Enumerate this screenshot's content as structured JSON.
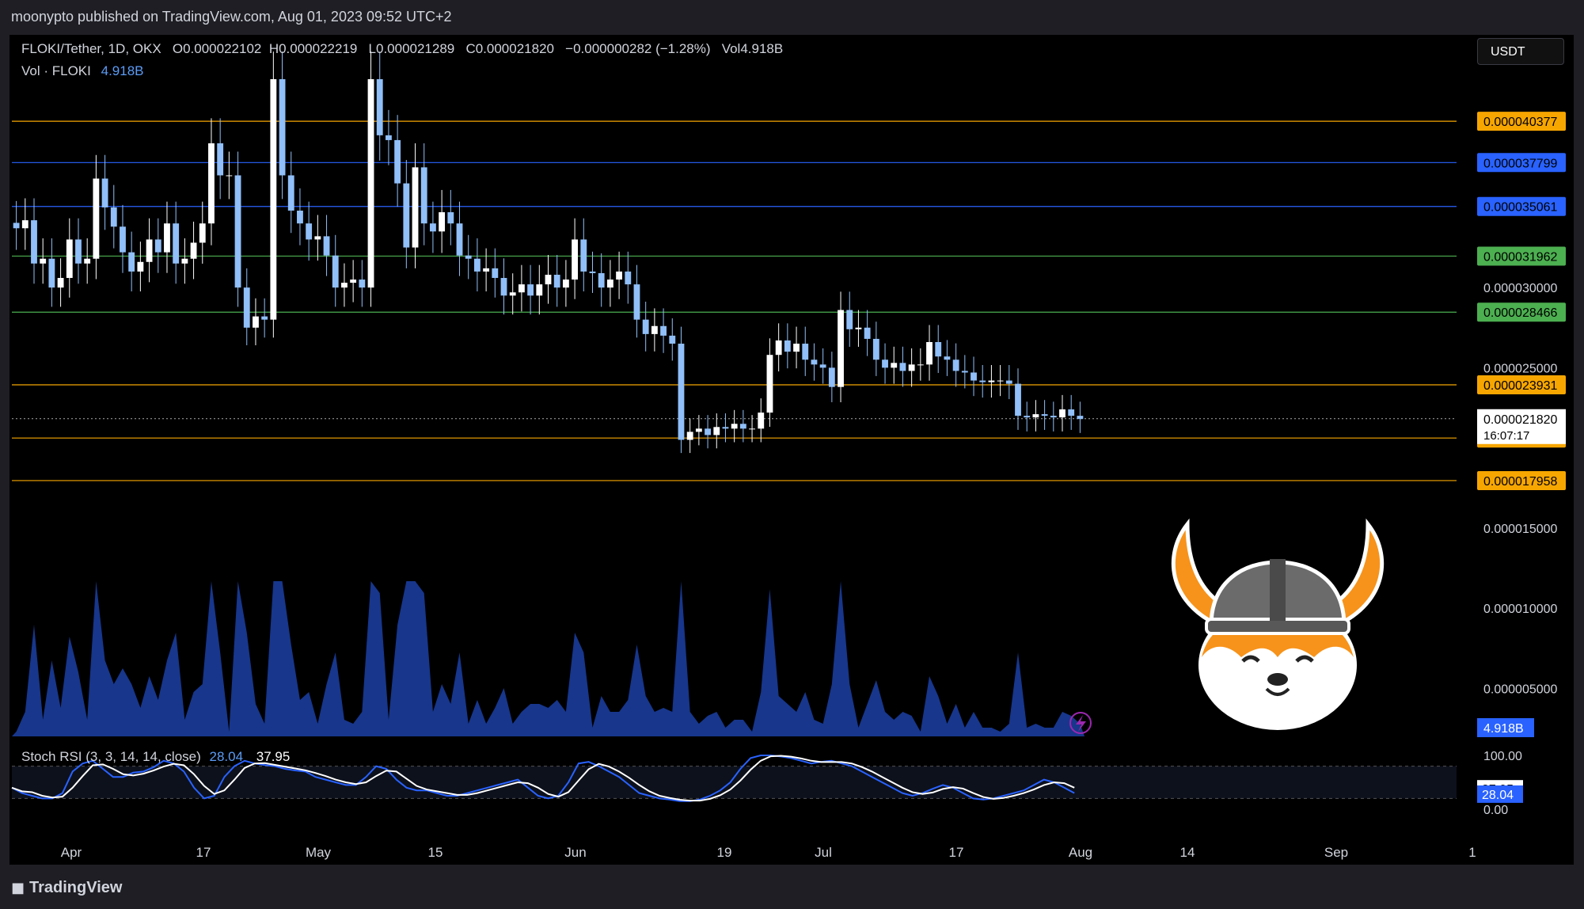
{
  "header": {
    "publish_text": "moonypto published on TradingView.com, Aug 01, 2023 09:52 UTC+2"
  },
  "legend": {
    "symbol": "FLOKI/Tether, 1D, OKX",
    "open": "O0.000022102",
    "high": "H0.000022219",
    "low": "L0.000021289",
    "close": "C0.000021820",
    "change": "−0.000000282 (−1.28%)",
    "volume": "Vol4.918B",
    "vol_label": "Vol · FLOKI",
    "vol_value": "4.918B"
  },
  "currency_button": "USDT",
  "footer": {
    "brand": "TradingView"
  },
  "colors": {
    "bg": "#000000",
    "candle_up": "#ffffff",
    "candle_down": "#90bff9",
    "orange": "#f7a600",
    "blue": "#2962ff",
    "green": "#4caf50",
    "volume": "#2962ff"
  },
  "chart_data": [
    {
      "type": "candlestick",
      "title": "FLOKI/Tether, 1D, OKX",
      "x_ticks": [
        "Apr",
        "17",
        "May",
        "15",
        "Jun",
        "19",
        "Jul",
        "17",
        "Aug",
        "14",
        "Sep",
        "1"
      ],
      "y_ticks": [
        3e-05,
        2.5e-05,
        1.5e-05,
        1e-05,
        5e-06
      ],
      "ylim": [
        2e-06,
        4.3e-05
      ],
      "horizontal_levels": [
        {
          "value": 4.0377e-05,
          "label": "0.000040377",
          "color": "#f7a600"
        },
        {
          "value": 3.7799e-05,
          "label": "0.000037799",
          "color": "#2962ff"
        },
        {
          "value": 3.5061e-05,
          "label": "0.000035061",
          "color": "#2962ff"
        },
        {
          "value": 3.1962e-05,
          "label": "0.000031962",
          "color": "#4caf50"
        },
        {
          "value": 2.8466e-05,
          "label": "0.000028466",
          "color": "#4caf50"
        },
        {
          "value": 2.3931e-05,
          "label": "0.000023931",
          "color": "#f7a600"
        },
        {
          "value": 2.0613e-05,
          "label": "0.000020613",
          "color": "#f7a600"
        },
        {
          "value": 1.7958e-05,
          "label": "0.000017958",
          "color": "#f7a600"
        }
      ],
      "last_price": {
        "value": 2.182e-05,
        "label": "0.000021820",
        "countdown": "16:07:17"
      },
      "close_series_start": "2023-03-27",
      "close": [
        3.37e-05,
        3.42e-05,
        3.15e-05,
        3.18e-05,
        3e-05,
        3.06e-05,
        3.3e-05,
        3.15e-05,
        3.18e-05,
        3.68e-05,
        3.5e-05,
        3.38e-05,
        3.22e-05,
        3.1e-05,
        3.16e-05,
        3.3e-05,
        3.22e-05,
        3.4e-05,
        3.15e-05,
        3.18e-05,
        3.28e-05,
        3.4e-05,
        3.9e-05,
        3.7e-05,
        3.7e-05,
        3e-05,
        2.75e-05,
        2.82e-05,
        2.8e-05,
        4.3e-05,
        3.7e-05,
        3.48e-05,
        3.4e-05,
        3.3e-05,
        3.32e-05,
        3.2e-05,
        3e-05,
        3.03e-05,
        3.05e-05,
        3e-05,
        4.3e-05,
        3.95e-05,
        3.92e-05,
        3.65e-05,
        3.25e-05,
        3.75e-05,
        3.4e-05,
        3.35e-05,
        3.47e-05,
        3.4e-05,
        3.2e-05,
        3.18e-05,
        3.1e-05,
        3.12e-05,
        3.06e-05,
        2.95e-05,
        2.97e-05,
        3.02e-05,
        2.95e-05,
        3.02e-05,
        3.08e-05,
        3e-05,
        3.05e-05,
        3.3e-05,
        3.1e-05,
        3.09e-05,
        3e-05,
        3.05e-05,
        3.1e-05,
        3.02e-05,
        2.8e-05,
        2.71e-05,
        2.76e-05,
        2.7e-05,
        2.65e-05,
        2.05e-05,
        2.1e-05,
        2.12e-05,
        2.08e-05,
        2.13e-05,
        2.12e-05,
        2.15e-05,
        2.12e-05,
        2.12e-05,
        2.22e-05,
        2.58e-05,
        2.67e-05,
        2.6e-05,
        2.65e-05,
        2.55e-05,
        2.52e-05,
        2.5e-05,
        2.38e-05,
        2.86e-05,
        2.74e-05,
        2.75e-05,
        2.68e-05,
        2.55e-05,
        2.5e-05,
        2.53e-05,
        2.48e-05,
        2.52e-05,
        2.52e-05,
        2.66e-05,
        2.57e-05,
        2.55e-05,
        2.48e-05,
        2.47e-05,
        2.42e-05,
        2.41e-05,
        2.42e-05,
        2.42e-05,
        2.4e-05,
        2.2e-05,
        2.19e-05,
        2.21e-05,
        2.2e-05,
        2.19e-05,
        2.24e-05,
        2.2e-05,
        2.18e-05
      ],
      "volume_label": "4.918B"
    },
    {
      "type": "line",
      "title": "Stoch RSI (3, 3, 14, 14, close)",
      "series": [
        {
          "name": "K",
          "last_value": 28.04,
          "color": "#2962ff"
        },
        {
          "name": "D",
          "last_value": 37.95,
          "color": "#ffffff"
        }
      ],
      "y_ticks": [
        100.0,
        0.0
      ],
      "ylim": [
        0,
        100
      ],
      "k_values": [
        40,
        30,
        25,
        20,
        20,
        30,
        70,
        85,
        90,
        75,
        60,
        60,
        68,
        70,
        78,
        90,
        85,
        70,
        40,
        20,
        25,
        60,
        80,
        90,
        85,
        82,
        80,
        75,
        72,
        70,
        60,
        55,
        50,
        45,
        45,
        60,
        80,
        75,
        55,
        40,
        35,
        35,
        30,
        25,
        25,
        30,
        35,
        40,
        45,
        50,
        55,
        40,
        25,
        20,
        25,
        50,
        85,
        88,
        80,
        70,
        60,
        45,
        30,
        25,
        20,
        18,
        15,
        15,
        18,
        25,
        35,
        50,
        75,
        95,
        100,
        100,
        98,
        95,
        90,
        85,
        88,
        90,
        85,
        80,
        70,
        60,
        50,
        40,
        30,
        25,
        30,
        38,
        45,
        40,
        30,
        20,
        18,
        20,
        25,
        30,
        35,
        45,
        55,
        50,
        40,
        30
      ]
    }
  ]
}
